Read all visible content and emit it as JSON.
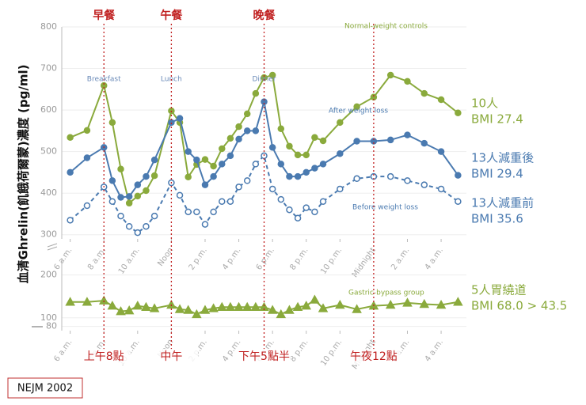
{
  "chart_data": [
    {
      "type": "line",
      "y_label": "血清Ghrelin(飢餓荷爾蒙)濃度 (pg/ml)",
      "xlim": [
        5.5,
        29.5
      ],
      "ylim": [
        290,
        800
      ],
      "yticks": [
        300,
        400,
        500,
        600,
        700,
        800
      ],
      "xticks": [
        {
          "value": 6,
          "label": "6 a.m."
        },
        {
          "value": 8,
          "label": "8 a.m."
        },
        {
          "value": 10,
          "label": "10 a.m."
        },
        {
          "value": 12,
          "label": "Noon"
        },
        {
          "value": 14,
          "label": "2 p.m."
        },
        {
          "value": 16,
          "label": "4 p.m."
        },
        {
          "value": 18,
          "label": "6 p.m."
        },
        {
          "value": 20,
          "label": "8 p.m."
        },
        {
          "value": 22,
          "label": "10 p.m."
        },
        {
          "value": 24,
          "label": "Midnight"
        },
        {
          "value": 26,
          "label": "2 a.m."
        },
        {
          "value": 28,
          "label": "4 a.m."
        }
      ],
      "x": [
        6,
        7,
        8,
        8.5,
        9,
        9.5,
        10,
        10.5,
        11,
        12,
        12.5,
        13,
        13.5,
        14,
        14.5,
        15,
        15.5,
        16,
        16.5,
        17,
        17.5,
        18,
        18.5,
        19,
        19.5,
        20,
        20.5,
        21,
        22,
        23,
        24,
        25,
        26,
        27,
        28,
        29
      ],
      "series": [
        {
          "name": [
            "10人",
            "BMI 27.4"
          ],
          "inner_label": "Normal-weight controls",
          "color": "#8aaa3c",
          "marker": "circle",
          "filled": true,
          "dash": false,
          "values": [
            534,
            551,
            659,
            570,
            458,
            376,
            393,
            406,
            442,
            598,
            570,
            439,
            469,
            481,
            465,
            507,
            532,
            560,
            591,
            640,
            678,
            684,
            555,
            513,
            492,
            492,
            534,
            526,
            570,
            608,
            631,
            684,
            669,
            640,
            625,
            593
          ]
        },
        {
          "name": [
            "13人減重後",
            "BMI 29.4"
          ],
          "inner_label": "After weight loss",
          "color": "#4a7ab0",
          "marker": "circle",
          "filled": true,
          "dash": false,
          "values": [
            450,
            485,
            510,
            430,
            390,
            392,
            420,
            440,
            480,
            570,
            580,
            500,
            480,
            420,
            440,
            470,
            490,
            530,
            550,
            550,
            620,
            510,
            470,
            440,
            440,
            450,
            460,
            470,
            495,
            525,
            525,
            528,
            540,
            520,
            500,
            443
          ]
        },
        {
          "name": [
            "13人減重前",
            "BMI 35.6"
          ],
          "inner_label": "Before weight loss",
          "color": "#4a7ab0",
          "marker": "circle",
          "filled": false,
          "dash": true,
          "values": [
            335,
            370,
            415,
            380,
            345,
            320,
            305,
            320,
            345,
            425,
            395,
            355,
            355,
            325,
            355,
            380,
            380,
            415,
            430,
            470,
            490,
            410,
            385,
            360,
            340,
            365,
            355,
            380,
            410,
            435,
            440,
            440,
            430,
            420,
            410,
            380
          ]
        }
      ],
      "markers": [
        {
          "x": 8,
          "label": "早餐",
          "time_label": "上午8點",
          "inner_label": "Breakfast"
        },
        {
          "x": 12,
          "label": "午餐",
          "time_label": "中午",
          "inner_label": "Lunch"
        },
        {
          "x": 17.5,
          "label": "晚餐",
          "time_label": "下午5點半",
          "inner_label": "Dinner"
        },
        {
          "x": 24,
          "time_label": "午夜12點"
        }
      ],
      "source": "NEJM 2002"
    },
    {
      "type": "line",
      "xlim": [
        5.5,
        29.5
      ],
      "ylim": [
        70,
        240
      ],
      "yticks": [
        80,
        100,
        200
      ],
      "xticks": [
        {
          "value": 6,
          "label": "6 a.m."
        },
        {
          "value": 8,
          "label": "8 a.m."
        },
        {
          "value": 10,
          "label": "10 a.m."
        },
        {
          "value": 12,
          "label": "Noon"
        },
        {
          "value": 14,
          "label": "2 p.m."
        },
        {
          "value": 16,
          "label": "4 p.m."
        },
        {
          "value": 18,
          "label": "6 p.m."
        },
        {
          "value": 20,
          "label": "8 p.m."
        },
        {
          "value": 22,
          "label": "10 p.m."
        },
        {
          "value": 24,
          "label": "Midnight"
        },
        {
          "value": 26,
          "label": "2 a.m."
        },
        {
          "value": 28,
          "label": "4 a.m."
        }
      ],
      "x": [
        6,
        7,
        8,
        8.5,
        9,
        9.5,
        10,
        10.5,
        11,
        12,
        12.5,
        13,
        13.5,
        14,
        14.5,
        15,
        15.5,
        16,
        16.5,
        17,
        17.5,
        18,
        18.5,
        19,
        19.5,
        20,
        20.5,
        21,
        22,
        23,
        24,
        25,
        26,
        27,
        28,
        29
      ],
      "series": [
        {
          "name": [
            "5人胃繞道",
            "BMI 68.0 > 43.5"
          ],
          "inner_label": "Gastric-bypass group",
          "color": "#8aaa3c",
          "marker": "triangle",
          "filled": true,
          "dash": false,
          "values": [
            137,
            137,
            140,
            128,
            115,
            117,
            128,
            125,
            122,
            130,
            120,
            118,
            108,
            118,
            122,
            125,
            125,
            125,
            125,
            125,
            125,
            118,
            108,
            118,
            125,
            128,
            142,
            122,
            130,
            120,
            128,
            130,
            135,
            132,
            130,
            137
          ]
        }
      ]
    }
  ]
}
